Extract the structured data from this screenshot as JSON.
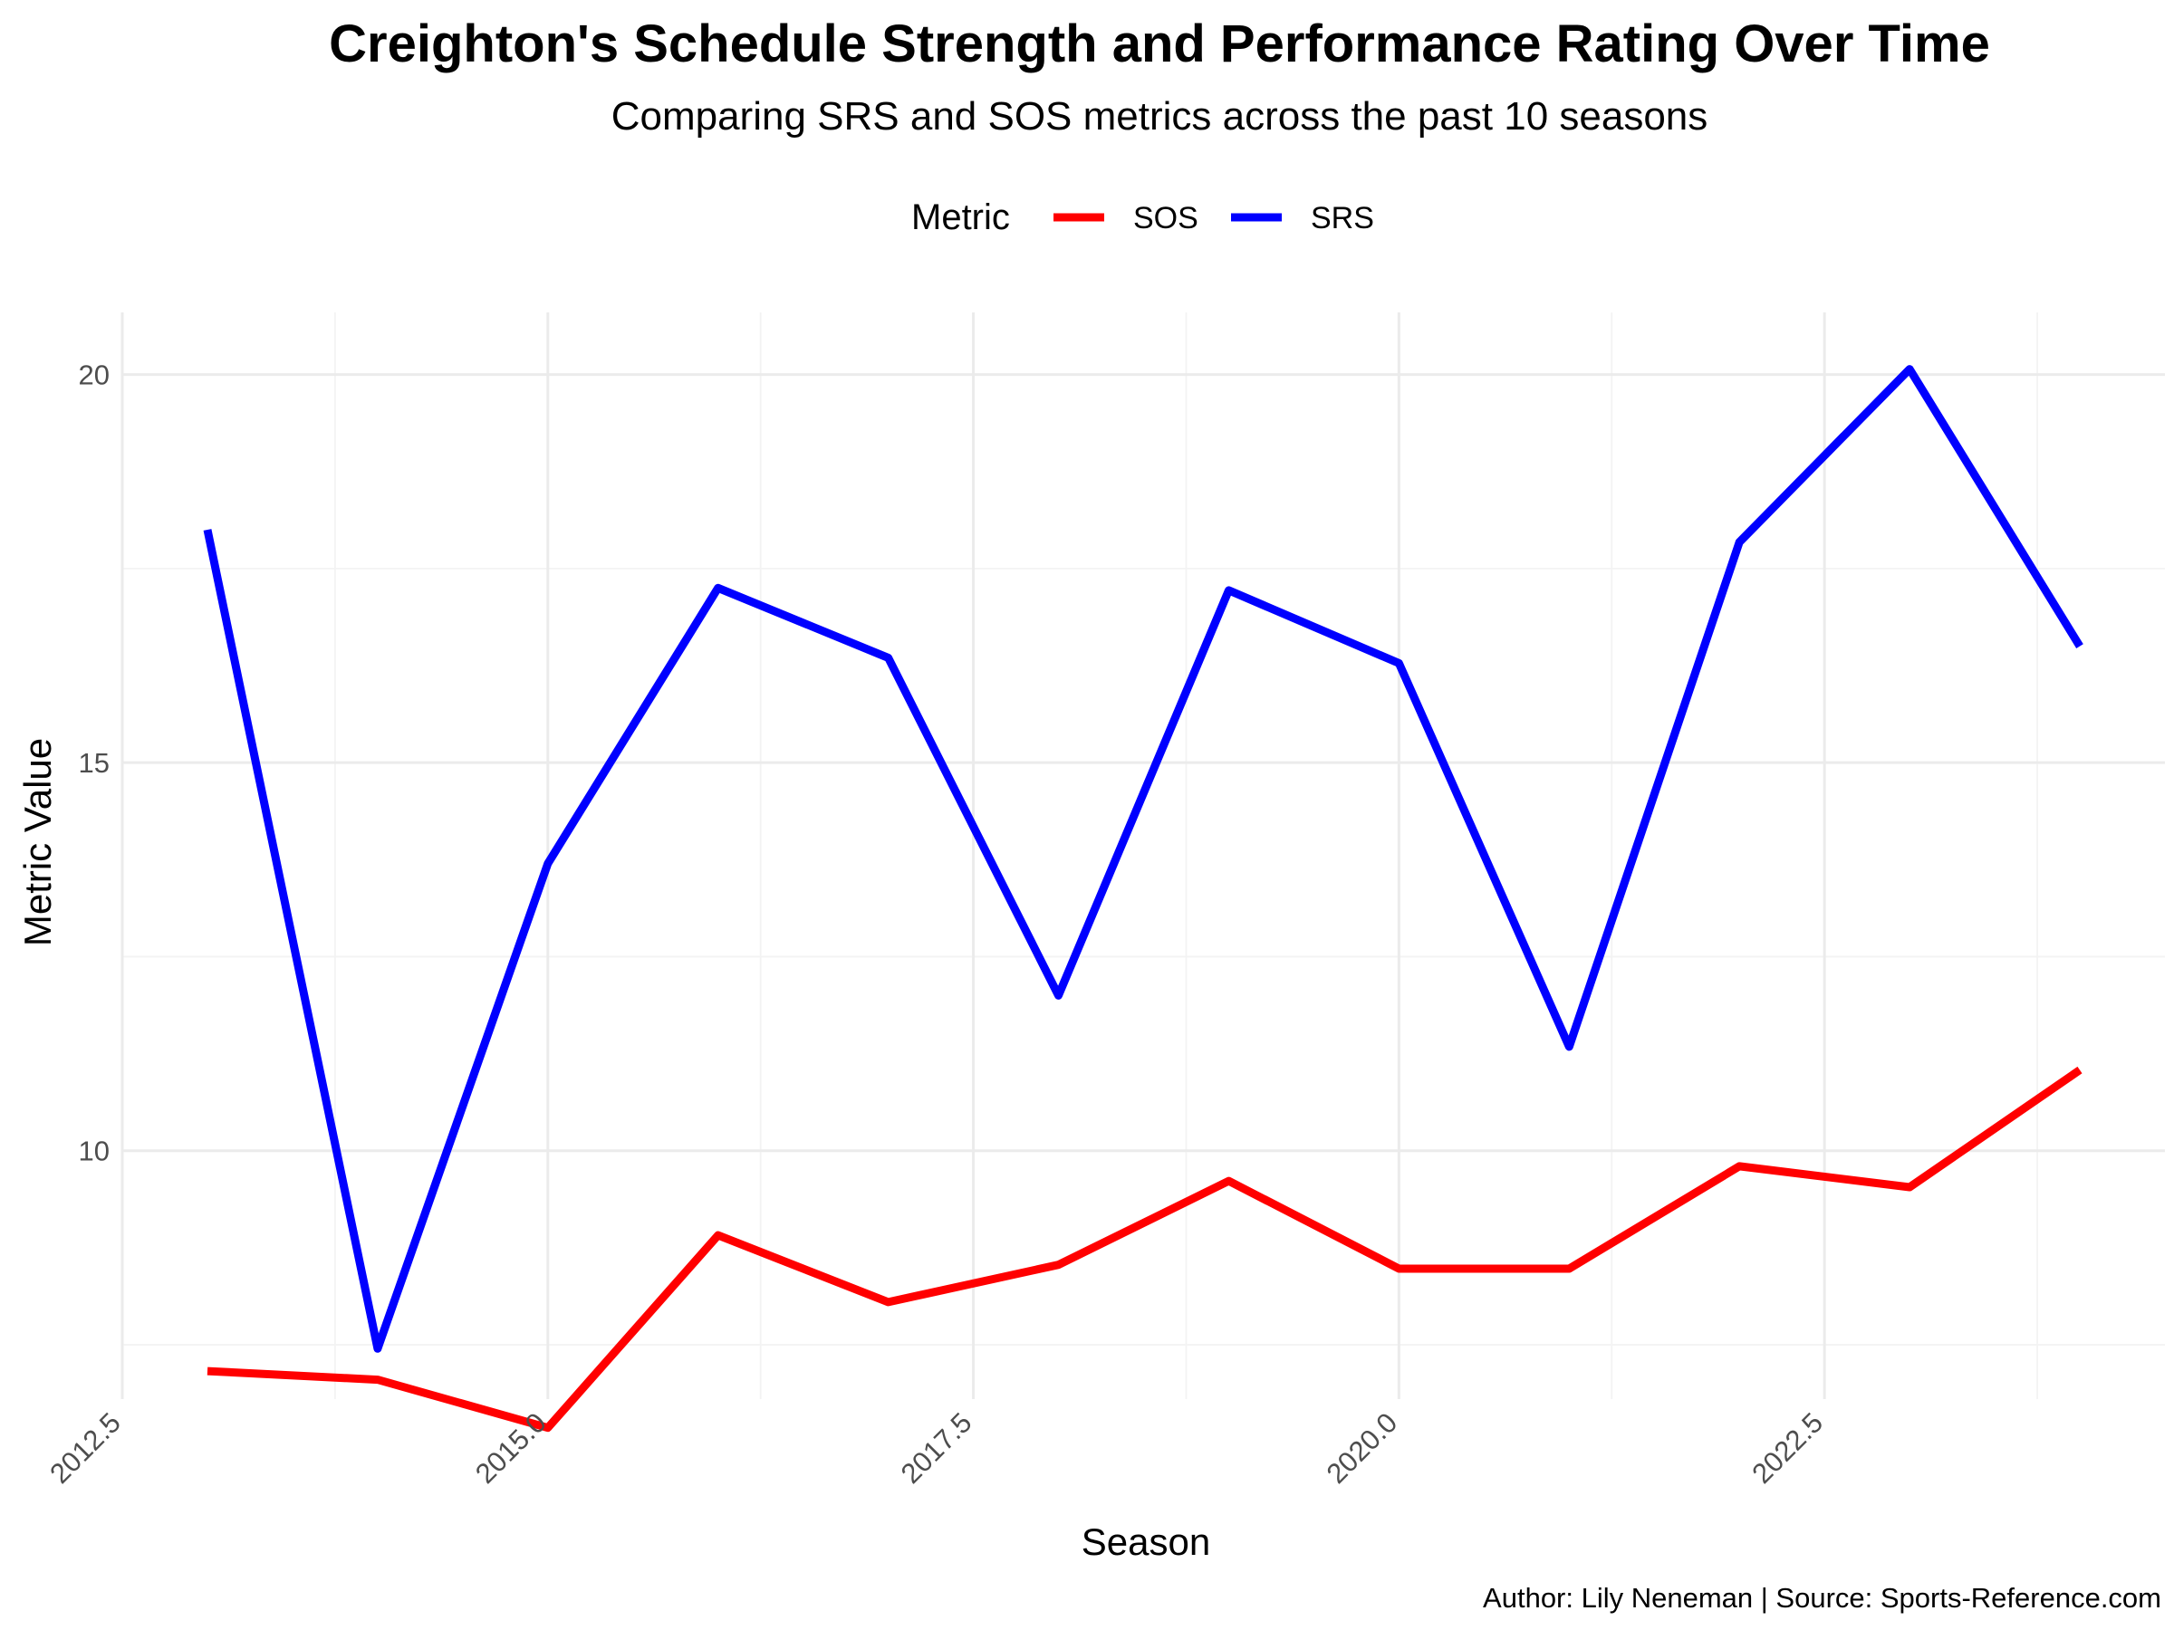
{
  "chart_data": {
    "type": "line",
    "title": "Creighton's Schedule Strength and Performance Rating Over Time",
    "subtitle": "Comparing SRS and SOS metrics across the past 10 seasons",
    "xlabel": "Season",
    "ylabel": "Metric Value",
    "caption": "Author: Lily Neneman | Source: Sports-Reference.com",
    "legend": {
      "title": "Metric",
      "position": "top",
      "entries": [
        {
          "name": "SOS",
          "color": "#ff0000"
        },
        {
          "name": "SRS",
          "color": "#0000ff"
        }
      ]
    },
    "xlim": [
      2012.5,
      2024.5
    ],
    "ylim": [
      6.8,
      20.8
    ],
    "x_ticks": [
      2012.5,
      2015.0,
      2017.5,
      2020.0,
      2022.5
    ],
    "x_tick_labels": [
      "2012.5",
      "2015.0",
      "2017.5",
      "2020.0",
      "2022.5"
    ],
    "y_ticks": [
      10,
      15,
      20
    ],
    "y_tick_labels": [
      "10",
      "15",
      "20"
    ],
    "grid": true,
    "x": [
      2013,
      2014,
      2015,
      2016,
      2017,
      2018,
      2019,
      2020,
      2021,
      2022,
      2023,
      2024
    ],
    "series": [
      {
        "name": "SOS",
        "color": "#ff0000",
        "values": [
          7.16,
          7.05,
          6.43,
          8.91,
          8.05,
          8.53,
          9.61,
          8.48,
          8.48,
          9.8,
          9.53,
          11.04
        ]
      },
      {
        "name": "SRS",
        "color": "#0000ff",
        "values": [
          18.0,
          7.45,
          13.7,
          17.25,
          16.35,
          12.0,
          17.22,
          16.28,
          11.34,
          17.84,
          20.07,
          16.5
        ]
      }
    ]
  }
}
